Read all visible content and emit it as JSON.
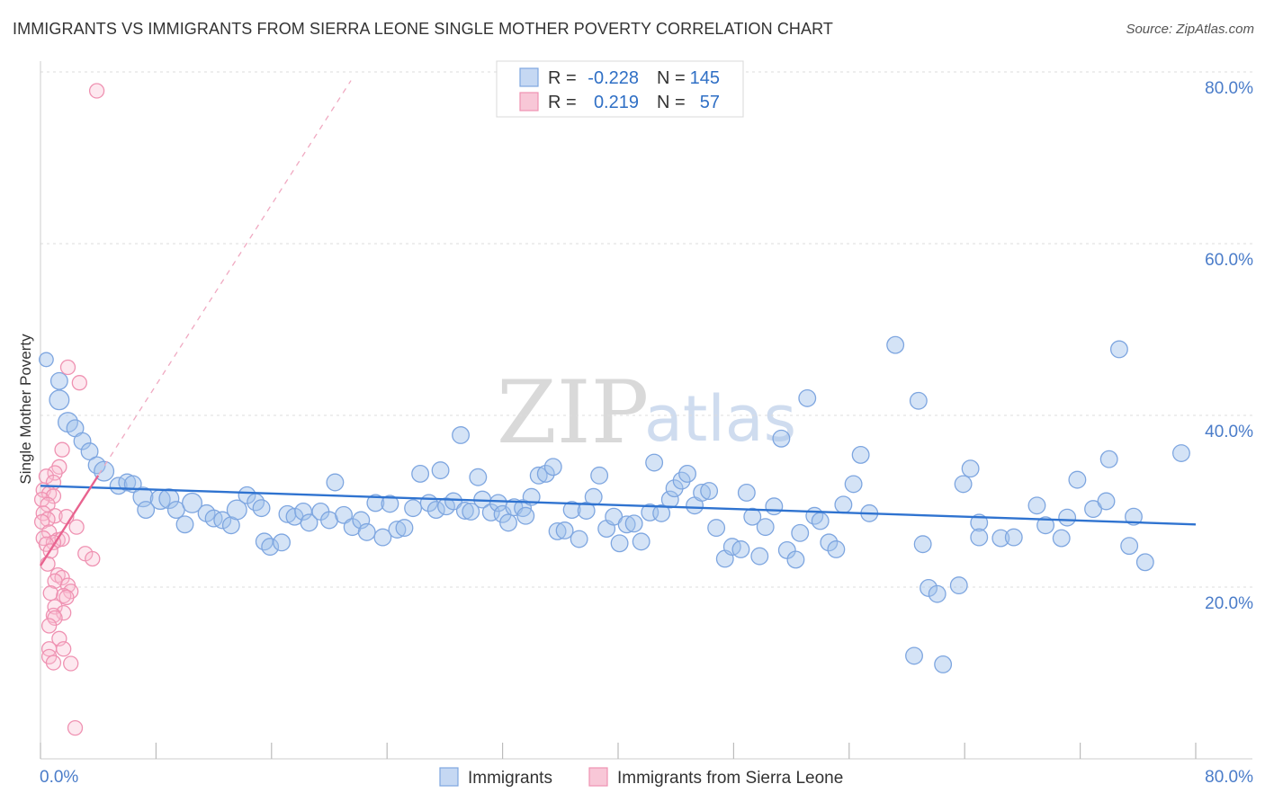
{
  "title": "IMMIGRANTS VS IMMIGRANTS FROM SIERRA LEONE SINGLE MOTHER POVERTY CORRELATION CHART",
  "source": "Source: ZipAtlas.com",
  "watermark": {
    "zip": "ZIP",
    "atlas": "atlas"
  },
  "colors": {
    "blue": "#6d9de0",
    "blue_line": "#2f73d0",
    "pink": "#f190b0",
    "pink_line": "#e8638f",
    "grid": "#dddddd"
  },
  "legend": {
    "rows": [
      {
        "r_label": "R =",
        "r_value": "-0.228",
        "n_label": "N =",
        "n_value": "145"
      },
      {
        "r_label": "R =",
        "r_value": "0.219",
        "n_label": "N =",
        "n_value": "57"
      }
    ]
  },
  "chart_data": {
    "type": "scatter",
    "title": "IMMIGRANTS VS IMMIGRANTS FROM SIERRA LEONE SINGLE MOTHER POVERTY CORRELATION CHART",
    "xlabel": "",
    "ylabel": "Single Mother Poverty",
    "xlim": [
      0,
      80
    ],
    "ylim": [
      0,
      82
    ],
    "x_tick_labels": [
      "0.0%",
      "80.0%"
    ],
    "y_ticks": [
      20,
      40,
      60,
      80
    ],
    "y_tick_labels": [
      "20.0%",
      "40.0%",
      "60.0%",
      "80.0%"
    ],
    "legend_position": "bottom-center",
    "series": [
      {
        "name": "Immigrants",
        "R": -0.228,
        "N": 145,
        "trend": {
          "x": [
            0,
            80
          ],
          "y": [
            31.8,
            27.3
          ]
        },
        "points": [
          [
            0.4,
            46.5,
            5
          ],
          [
            1.3,
            44.0,
            6
          ],
          [
            1.3,
            41.8,
            7
          ],
          [
            1.9,
            39.2,
            7
          ],
          [
            2.4,
            38.5,
            6
          ],
          [
            2.9,
            37.0,
            6
          ],
          [
            3.4,
            35.8,
            6
          ],
          [
            3.9,
            34.2,
            6
          ],
          [
            4.4,
            33.5,
            7
          ],
          [
            5.4,
            31.8,
            6
          ],
          [
            6.0,
            32.2,
            6
          ],
          [
            6.4,
            32.0,
            6
          ],
          [
            7.1,
            30.5,
            7
          ],
          [
            8.3,
            30.2,
            7
          ],
          [
            7.3,
            29.0,
            6
          ],
          [
            8.9,
            30.3,
            7
          ],
          [
            9.4,
            29.0,
            6
          ],
          [
            10.0,
            27.3,
            6
          ],
          [
            10.5,
            29.8,
            7
          ],
          [
            11.5,
            28.6,
            6
          ],
          [
            12.0,
            28.0,
            6
          ],
          [
            12.6,
            27.8,
            6
          ],
          [
            13.2,
            27.2,
            6
          ],
          [
            13.6,
            29.0,
            7
          ],
          [
            14.3,
            30.7,
            6
          ],
          [
            14.9,
            29.9,
            6
          ],
          [
            15.3,
            29.2,
            6
          ],
          [
            15.5,
            25.3,
            6
          ],
          [
            15.9,
            24.7,
            6
          ],
          [
            16.7,
            25.2,
            6
          ],
          [
            17.1,
            28.5,
            6
          ],
          [
            17.6,
            28.2,
            6
          ],
          [
            18.2,
            28.8,
            6
          ],
          [
            18.6,
            27.5,
            6
          ],
          [
            19.4,
            28.8,
            6
          ],
          [
            20.0,
            27.8,
            6
          ],
          [
            20.4,
            32.2,
            6
          ],
          [
            21.0,
            28.4,
            6
          ],
          [
            21.6,
            27.0,
            6
          ],
          [
            22.2,
            27.8,
            6
          ],
          [
            22.6,
            26.4,
            6
          ],
          [
            23.2,
            29.8,
            6
          ],
          [
            23.7,
            25.8,
            6
          ],
          [
            24.2,
            29.7,
            6
          ],
          [
            24.7,
            26.7,
            6
          ],
          [
            25.2,
            26.9,
            6
          ],
          [
            25.8,
            29.2,
            6
          ],
          [
            26.3,
            33.2,
            6
          ],
          [
            26.9,
            29.8,
            6
          ],
          [
            27.4,
            29.0,
            6
          ],
          [
            27.7,
            33.6,
            6
          ],
          [
            28.1,
            29.4,
            6
          ],
          [
            28.6,
            30.0,
            6
          ],
          [
            29.1,
            37.7,
            6
          ],
          [
            29.4,
            28.9,
            6
          ],
          [
            29.8,
            28.8,
            6
          ],
          [
            30.3,
            32.8,
            6
          ],
          [
            30.6,
            30.2,
            6
          ],
          [
            31.2,
            28.7,
            6
          ],
          [
            31.7,
            29.8,
            6
          ],
          [
            32.0,
            28.5,
            6
          ],
          [
            32.4,
            27.5,
            6
          ],
          [
            32.8,
            29.3,
            6
          ],
          [
            33.4,
            29.2,
            6
          ],
          [
            33.6,
            28.3,
            6
          ],
          [
            34.0,
            30.5,
            6
          ],
          [
            34.5,
            33.0,
            6
          ],
          [
            35.0,
            33.2,
            6
          ],
          [
            35.5,
            34.0,
            6
          ],
          [
            35.8,
            26.5,
            6
          ],
          [
            36.3,
            26.6,
            6
          ],
          [
            36.8,
            29.0,
            6
          ],
          [
            37.3,
            25.6,
            6
          ],
          [
            37.8,
            28.9,
            6
          ],
          [
            38.3,
            30.5,
            6
          ],
          [
            38.7,
            33.0,
            6
          ],
          [
            39.2,
            26.8,
            6
          ],
          [
            39.7,
            28.2,
            6
          ],
          [
            40.1,
            25.1,
            6
          ],
          [
            40.6,
            27.3,
            6
          ],
          [
            41.1,
            27.4,
            6
          ],
          [
            41.6,
            25.3,
            6
          ],
          [
            42.2,
            28.7,
            6
          ],
          [
            42.5,
            34.5,
            6
          ],
          [
            43.0,
            28.6,
            6
          ],
          [
            43.6,
            30.2,
            6
          ],
          [
            43.9,
            31.5,
            6
          ],
          [
            44.4,
            32.4,
            6
          ],
          [
            44.8,
            33.2,
            6
          ],
          [
            45.3,
            29.5,
            6
          ],
          [
            45.8,
            31.0,
            6
          ],
          [
            46.3,
            31.2,
            6
          ],
          [
            46.8,
            26.9,
            6
          ],
          [
            47.4,
            23.3,
            6
          ],
          [
            47.9,
            24.7,
            6
          ],
          [
            48.5,
            24.4,
            6
          ],
          [
            48.9,
            31.0,
            6
          ],
          [
            49.3,
            28.2,
            6
          ],
          [
            49.8,
            23.6,
            6
          ],
          [
            50.2,
            27.0,
            6
          ],
          [
            50.8,
            29.4,
            6
          ],
          [
            51.3,
            37.3,
            6
          ],
          [
            51.7,
            24.3,
            6
          ],
          [
            52.3,
            23.2,
            6
          ],
          [
            52.6,
            26.3,
            6
          ],
          [
            53.1,
            42.0,
            6
          ],
          [
            53.6,
            28.3,
            6
          ],
          [
            54.0,
            27.7,
            6
          ],
          [
            54.6,
            25.2,
            6
          ],
          [
            55.1,
            24.4,
            6
          ],
          [
            55.6,
            29.6,
            6
          ],
          [
            56.3,
            32.0,
            6
          ],
          [
            56.8,
            35.4,
            6
          ],
          [
            57.4,
            28.6,
            6
          ],
          [
            59.2,
            48.2,
            6
          ],
          [
            60.8,
            41.7,
            6
          ],
          [
            61.1,
            25.0,
            6
          ],
          [
            61.5,
            19.9,
            6
          ],
          [
            62.1,
            19.2,
            6
          ],
          [
            63.6,
            20.2,
            6
          ],
          [
            63.9,
            32.0,
            6
          ],
          [
            64.4,
            33.8,
            6
          ],
          [
            65.0,
            27.5,
            6
          ],
          [
            65.0,
            25.8,
            6
          ],
          [
            66.5,
            25.7,
            6
          ],
          [
            67.4,
            25.8,
            6
          ],
          [
            69.0,
            29.5,
            6
          ],
          [
            69.6,
            27.2,
            6
          ],
          [
            70.7,
            25.7,
            6
          ],
          [
            71.1,
            28.1,
            6
          ],
          [
            71.8,
            32.5,
            6
          ],
          [
            72.9,
            29.1,
            6
          ],
          [
            73.8,
            30.0,
            6
          ],
          [
            74.0,
            34.9,
            6
          ],
          [
            74.7,
            47.7,
            6
          ],
          [
            75.4,
            24.8,
            6
          ],
          [
            75.7,
            28.2,
            6
          ],
          [
            76.5,
            22.9,
            6
          ],
          [
            79.0,
            35.6,
            6
          ],
          [
            60.5,
            12.0,
            6
          ],
          [
            62.5,
            11.0,
            6
          ]
        ]
      },
      {
        "name": "Immigrants from Sierra Leone",
        "R": 0.219,
        "N": 57,
        "trend": {
          "x": [
            0,
            4.0
          ],
          "y": [
            22.5,
            33.0
          ]
        },
        "trend_dashed": {
          "x": [
            0,
            21.5
          ],
          "y": [
            22.5,
            79.0
          ]
        },
        "points": [
          [
            3.9,
            77.8
          ],
          [
            1.9,
            45.6
          ],
          [
            2.7,
            43.8
          ],
          [
            1.5,
            36.0
          ],
          [
            1.3,
            34.0
          ],
          [
            1.0,
            33.3
          ],
          [
            0.4,
            32.9
          ],
          [
            0.9,
            32.2
          ],
          [
            0.2,
            31.3
          ],
          [
            0.6,
            30.9
          ],
          [
            0.9,
            30.6
          ],
          [
            0.1,
            30.2
          ],
          [
            0.5,
            29.6
          ],
          [
            0.2,
            28.6
          ],
          [
            1.0,
            28.3
          ],
          [
            1.8,
            28.2
          ],
          [
            0.5,
            27.9
          ],
          [
            0.1,
            27.6
          ],
          [
            2.5,
            27.0
          ],
          [
            0.6,
            26.4
          ],
          [
            0.2,
            25.7
          ],
          [
            1.2,
            25.5
          ],
          [
            1.5,
            25.6
          ],
          [
            0.9,
            25.2
          ],
          [
            0.4,
            25.0
          ],
          [
            0.7,
            24.2
          ],
          [
            3.1,
            23.9
          ],
          [
            3.6,
            23.3
          ],
          [
            0.5,
            22.7
          ],
          [
            1.2,
            21.4
          ],
          [
            1.5,
            21.1
          ],
          [
            1.0,
            20.7
          ],
          [
            1.9,
            20.2
          ],
          [
            2.1,
            19.5
          ],
          [
            1.6,
            19.0
          ],
          [
            1.8,
            18.8
          ],
          [
            0.7,
            19.3
          ],
          [
            1.0,
            17.7
          ],
          [
            1.6,
            17.0
          ],
          [
            0.9,
            16.7
          ],
          [
            1.0,
            16.4
          ],
          [
            0.6,
            15.5
          ],
          [
            1.3,
            14.0
          ],
          [
            0.6,
            12.8
          ],
          [
            1.6,
            12.8
          ],
          [
            0.6,
            11.9
          ],
          [
            0.9,
            11.2
          ],
          [
            2.1,
            11.1
          ],
          [
            2.4,
            3.6
          ]
        ]
      }
    ]
  },
  "bottom_legend": [
    {
      "label": "Immigrants"
    },
    {
      "label": "Immigrants from Sierra Leone"
    }
  ]
}
